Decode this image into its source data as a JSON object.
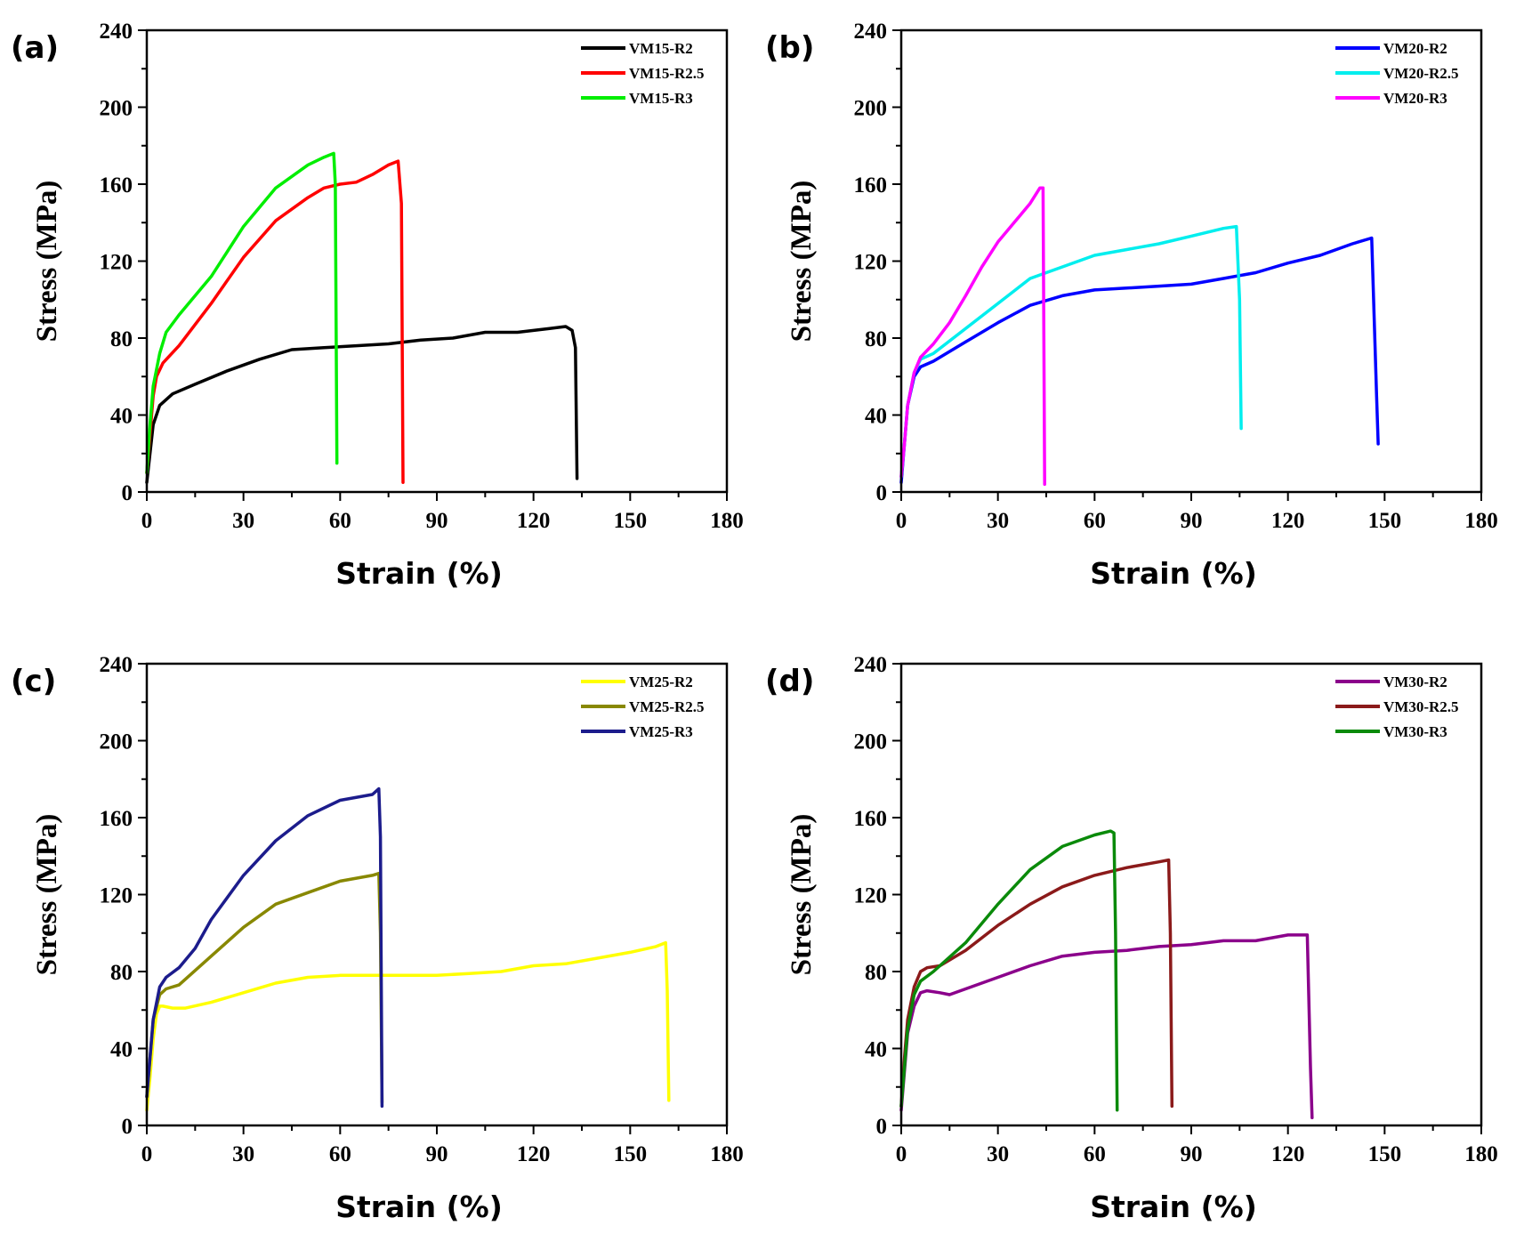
{
  "chart_data": [
    {
      "type": "line",
      "panel_label": "(a)",
      "xlabel": "Strain (%)",
      "ylabel": "Stress (MPa)",
      "xlim": [
        0,
        180
      ],
      "ylim": [
        0,
        240
      ],
      "xticks": [
        "0",
        "30",
        "60",
        "90",
        "120",
        "150",
        "180"
      ],
      "yticks": [
        "0",
        "40",
        "80",
        "120",
        "160",
        "200",
        "240"
      ],
      "legend_position": "top-right",
      "series": [
        {
          "name": "VM15-R2",
          "color": "#000000",
          "x": [
            0,
            1,
            2,
            4,
            8,
            15,
            25,
            35,
            45,
            55,
            65,
            75,
            85,
            95,
            105,
            115,
            125,
            130,
            132,
            133,
            133.5
          ],
          "y": [
            5,
            20,
            35,
            45,
            51,
            56,
            63,
            69,
            74,
            75,
            76,
            77,
            79,
            80,
            83,
            83,
            85,
            86,
            84,
            75,
            7
          ]
        },
        {
          "name": "VM15-R2.5",
          "color": "#ff0000",
          "x": [
            0,
            1,
            2,
            3,
            5,
            10,
            20,
            30,
            40,
            50,
            55,
            60,
            65,
            70,
            75,
            78,
            79,
            79.5
          ],
          "y": [
            10,
            30,
            50,
            60,
            67,
            76,
            98,
            122,
            141,
            153,
            158,
            160,
            161,
            165,
            170,
            172,
            150,
            5
          ]
        },
        {
          "name": "VM15-R3",
          "color": "#00ee00",
          "x": [
            0,
            1,
            2,
            4,
            6,
            10,
            20,
            30,
            40,
            50,
            55,
            58,
            58.5,
            59
          ],
          "y": [
            10,
            35,
            55,
            72,
            83,
            92,
            112,
            138,
            158,
            170,
            174,
            176,
            160,
            15
          ]
        }
      ]
    },
    {
      "type": "line",
      "panel_label": "(b)",
      "xlabel": "Strain (%)",
      "ylabel": "Stress (MPa)",
      "xlim": [
        0,
        180
      ],
      "ylim": [
        0,
        240
      ],
      "xticks": [
        "0",
        "30",
        "60",
        "90",
        "120",
        "150",
        "180"
      ],
      "yticks": [
        "0",
        "40",
        "80",
        "120",
        "160",
        "200",
        "240"
      ],
      "legend_position": "top-right",
      "series": [
        {
          "name": "VM20-R2",
          "color": "#0000ff",
          "x": [
            0,
            1,
            2,
            4,
            6,
            10,
            20,
            30,
            40,
            50,
            60,
            70,
            80,
            90,
            100,
            110,
            120,
            130,
            140,
            146,
            147.5,
            148
          ],
          "y": [
            5,
            25,
            45,
            60,
            65,
            68,
            78,
            88,
            97,
            102,
            105,
            106,
            107,
            108,
            111,
            114,
            119,
            123,
            129,
            132,
            50,
            25
          ]
        },
        {
          "name": "VM20-R2.5",
          "color": "#00eeee",
          "x": [
            0,
            1,
            2,
            4,
            6,
            10,
            20,
            30,
            40,
            50,
            60,
            70,
            80,
            90,
            100,
            104,
            105,
            105.5
          ],
          "y": [
            8,
            25,
            45,
            62,
            69,
            72,
            85,
            98,
            111,
            117,
            123,
            126,
            129,
            133,
            137,
            138,
            100,
            33
          ]
        },
        {
          "name": "VM20-R3",
          "color": "#ff00ff",
          "x": [
            0,
            1,
            2,
            4,
            6,
            10,
            15,
            20,
            25,
            30,
            35,
            40,
            43,
            44,
            44.5
          ],
          "y": [
            8,
            25,
            45,
            62,
            70,
            77,
            88,
            102,
            117,
            130,
            140,
            150,
            158,
            158,
            4
          ]
        }
      ]
    },
    {
      "type": "line",
      "panel_label": "(c)",
      "xlabel": "Strain (%)",
      "ylabel": "Stress (MPa)",
      "xlim": [
        0,
        180
      ],
      "ylim": [
        0,
        240
      ],
      "xticks": [
        "0",
        "30",
        "60",
        "90",
        "120",
        "150",
        "180"
      ],
      "yticks": [
        "0",
        "40",
        "80",
        "120",
        "160",
        "200",
        "240"
      ],
      "legend_position": "top-right",
      "series": [
        {
          "name": "VM25-R2",
          "color": "#ffff00",
          "x": [
            0,
            1,
            2,
            3,
            4,
            5,
            8,
            12,
            20,
            30,
            40,
            50,
            60,
            70,
            80,
            90,
            100,
            110,
            120,
            130,
            140,
            150,
            158,
            161,
            161.5,
            162
          ],
          "y": [
            8,
            25,
            45,
            58,
            62,
            62,
            61,
            61,
            64,
            69,
            74,
            77,
            78,
            78,
            78,
            78,
            79,
            80,
            83,
            84,
            87,
            90,
            93,
            95,
            70,
            13
          ]
        },
        {
          "name": "VM25-R2.5",
          "color": "#888800",
          "x": [
            0,
            1,
            2,
            4,
            6,
            10,
            20,
            30,
            40,
            50,
            60,
            70,
            72,
            72.5,
            73
          ],
          "y": [
            15,
            35,
            55,
            68,
            71,
            73,
            88,
            103,
            115,
            121,
            127,
            130,
            131,
            100,
            12
          ]
        },
        {
          "name": "VM25-R3",
          "color": "#1c1c8c",
          "x": [
            0,
            1,
            2,
            4,
            6,
            10,
            15,
            20,
            30,
            40,
            50,
            60,
            70,
            72,
            72.5,
            73
          ],
          "y": [
            15,
            35,
            55,
            72,
            77,
            82,
            92,
            107,
            130,
            148,
            161,
            169,
            172,
            175,
            150,
            10
          ]
        }
      ]
    },
    {
      "type": "line",
      "panel_label": "(d)",
      "xlabel": "Strain (%)",
      "ylabel": "Stress (MPa)",
      "xlim": [
        0,
        180
      ],
      "ylim": [
        0,
        240
      ],
      "xticks": [
        "0",
        "30",
        "60",
        "90",
        "120",
        "150",
        "180"
      ],
      "yticks": [
        "0",
        "40",
        "80",
        "120",
        "160",
        "200",
        "240"
      ],
      "legend_position": "top-right",
      "series": [
        {
          "name": "VM30-R2",
          "color": "#8b008b",
          "x": [
            0,
            1,
            2,
            4,
            6,
            8,
            12,
            15,
            20,
            30,
            40,
            50,
            60,
            70,
            80,
            90,
            100,
            110,
            120,
            126,
            127,
            127.5
          ],
          "y": [
            8,
            28,
            48,
            62,
            69,
            70,
            69,
            68,
            71,
            77,
            83,
            88,
            90,
            91,
            93,
            94,
            96,
            96,
            99,
            99,
            30,
            4
          ]
        },
        {
          "name": "VM30-R2.5",
          "color": "#8b1a1a",
          "x": [
            0,
            1,
            2,
            4,
            6,
            8,
            12,
            20,
            30,
            40,
            50,
            60,
            70,
            80,
            83,
            83.5,
            84
          ],
          "y": [
            10,
            35,
            55,
            72,
            80,
            82,
            83,
            91,
            104,
            115,
            124,
            130,
            134,
            137,
            138,
            100,
            10
          ]
        },
        {
          "name": "VM30-R3",
          "color": "#0a8a0a",
          "x": [
            0,
            1,
            2,
            4,
            6,
            10,
            20,
            30,
            40,
            50,
            60,
            65,
            66,
            66.5,
            67
          ],
          "y": [
            10,
            30,
            50,
            68,
            75,
            80,
            95,
            115,
            133,
            145,
            151,
            153,
            152,
            100,
            8
          ]
        }
      ]
    }
  ]
}
